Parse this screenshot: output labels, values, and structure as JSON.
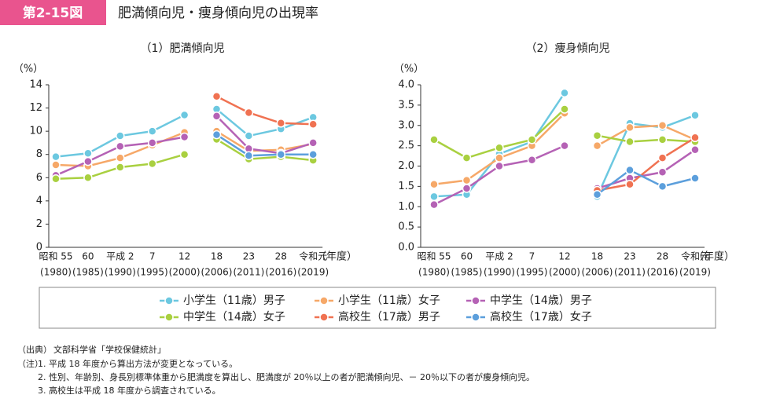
{
  "header": {
    "badge": "第2-15図",
    "title": "肥満傾向児・痩身傾向児の出現率"
  },
  "chart_data": [
    {
      "type": "line",
      "title": "（1）肥満傾向児",
      "y_label": "（%）",
      "x_label": "（年度）",
      "categories": [
        "昭和 55",
        "60",
        "平成 2",
        "7",
        "12",
        "18",
        "23",
        "28",
        "令和元"
      ],
      "category_years": [
        "(1980)",
        "(1985)",
        "(1990)",
        "(1995)",
        "(2000)",
        "(2006)",
        "(2011)",
        "(2016)",
        "(2019)"
      ],
      "segment_starts": [
        0,
        5
      ],
      "ylim": [
        0,
        14
      ],
      "yticks": [
        0,
        2,
        4,
        6,
        8,
        10,
        12,
        14
      ],
      "series": [
        {
          "name": "小学生（11歳）男子",
          "color": "#6cc8e0",
          "values": [
            7.8,
            8.1,
            9.6,
            10.0,
            11.4,
            11.9,
            9.6,
            10.2,
            11.2
          ]
        },
        {
          "name": "小学生（11歳）女子",
          "color": "#f6a868",
          "values": [
            7.1,
            7.0,
            7.7,
            8.8,
            9.9,
            10.0,
            8.3,
            8.4,
            8.9
          ]
        },
        {
          "name": "中学生（14歳）男子",
          "color": "#b562b5",
          "values": [
            6.2,
            7.4,
            8.7,
            9.0,
            9.5,
            11.3,
            8.5,
            8.1,
            9.0
          ]
        },
        {
          "name": "中学生（14歳）女子",
          "color": "#a9d040",
          "values": [
            5.9,
            6.0,
            6.9,
            7.2,
            8.0,
            9.3,
            7.6,
            7.8,
            7.5
          ]
        },
        {
          "name": "高校生（17歳）男子",
          "color": "#f07252",
          "values": [
            null,
            null,
            null,
            null,
            null,
            13.0,
            11.6,
            10.7,
            10.6
          ]
        },
        {
          "name": "高校生（17歳）女子",
          "color": "#5c9fdc",
          "values": [
            null,
            null,
            null,
            null,
            null,
            9.7,
            7.9,
            8.0,
            8.0
          ]
        }
      ]
    },
    {
      "type": "line",
      "title": "（2）痩身傾向児",
      "y_label": "（%）",
      "x_label": "（年度）",
      "categories": [
        "昭和 55",
        "60",
        "平成 2",
        "7",
        "12",
        "18",
        "23",
        "28",
        "令和元"
      ],
      "category_years": [
        "(1980)",
        "(1985)",
        "(1990)",
        "(1995)",
        "(2000)",
        "(2006)",
        "(2011)",
        "(2016)",
        "(2019)"
      ],
      "segment_starts": [
        0,
        5
      ],
      "ylim": [
        0,
        4
      ],
      "yticks": [
        {
          "value": 0,
          "label": "0.0"
        },
        0.5,
        {
          "value": 1,
          "label": "1.0"
        },
        1.5,
        {
          "value": 2,
          "label": "2.0"
        },
        2.5,
        {
          "value": 3,
          "label": "3.0"
        },
        3.5,
        {
          "value": 4,
          "label": "4.0"
        }
      ],
      "series": [
        {
          "color": "#6cc8e0",
          "values": [
            1.25,
            1.3,
            2.3,
            2.6,
            3.8,
            1.25,
            3.05,
            2.95,
            3.25
          ]
        },
        {
          "color": "#f6a868",
          "values": [
            1.55,
            1.65,
            2.2,
            2.5,
            3.3,
            2.5,
            2.95,
            3.0,
            2.65
          ]
        },
        {
          "color": "#b562b5",
          "values": [
            1.05,
            1.45,
            2.0,
            2.15,
            2.5,
            1.45,
            1.7,
            1.85,
            2.4
          ]
        },
        {
          "color": "#a9d040",
          "values": [
            2.65,
            2.2,
            2.45,
            2.65,
            3.4,
            2.75,
            2.6,
            2.65,
            2.6
          ]
        },
        {
          "color": "#f07252",
          "values": [
            null,
            null,
            null,
            null,
            null,
            1.4,
            1.55,
            2.2,
            2.7
          ]
        },
        {
          "color": "#5c9fdc",
          "values": [
            null,
            null,
            null,
            null,
            null,
            1.3,
            1.9,
            1.5,
            1.7
          ]
        }
      ]
    }
  ],
  "notes": {
    "source_label": "（出典）",
    "source": "文部科学省「学校保健統計」",
    "note_label": "（注）",
    "items": [
      "1.  平成 18 年度から算出方法が変更となっている。",
      "2.  性別、年齢別、身長別標準体重から肥満度を算出し、肥満度が 20％以上の者が肥満傾向児、－ 20％以下の者が痩身傾向児。",
      "3.  高校生は平成 18 年度から調査されている。"
    ]
  }
}
